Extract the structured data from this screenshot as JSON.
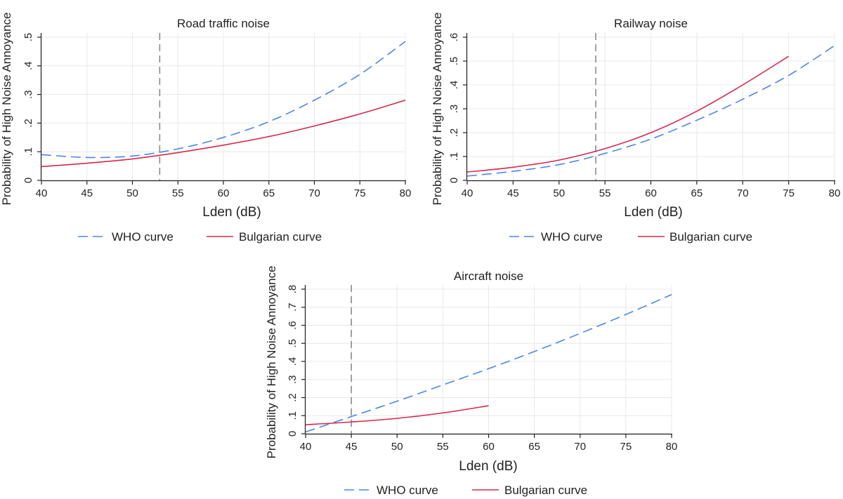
{
  "chart_data": [
    {
      "type": "line",
      "title": "Road traffic noise",
      "xlabel": "Lden (dB)",
      "ylabel": "Probability of High Noise Annoyance",
      "xlim": [
        40,
        80
      ],
      "ylim": [
        0,
        0.5
      ],
      "x_ticks": [
        40,
        45,
        50,
        55,
        60,
        65,
        70,
        75,
        80
      ],
      "y_ticks": [
        0,
        0.1,
        0.2,
        0.3,
        0.4,
        0.5
      ],
      "y_tick_labels": [
        "0",
        ".1",
        ".2",
        ".3",
        ".4",
        ".5"
      ],
      "grid": true,
      "threshold_x": 53,
      "series": [
        {
          "name": "WHO curve",
          "style": "dashed",
          "color": "#4a86e8",
          "x": [
            40,
            45,
            50,
            55,
            60,
            65,
            70,
            75,
            80
          ],
          "y": [
            0.09,
            0.08,
            0.085,
            0.11,
            0.15,
            0.205,
            0.28,
            0.37,
            0.485
          ]
        },
        {
          "name": "Bulgarian curve",
          "style": "solid",
          "color": "#d6284d",
          "x": [
            40,
            45,
            50,
            55,
            60,
            65,
            70,
            75,
            80
          ],
          "y": [
            0.048,
            0.06,
            0.075,
            0.097,
            0.123,
            0.153,
            0.19,
            0.232,
            0.28
          ]
        }
      ]
    },
    {
      "type": "line",
      "title": "Railway noise",
      "xlabel": "Lden (dB)",
      "ylabel": "Probability of High Noise Annoyance",
      "xlim": [
        40,
        80
      ],
      "ylim": [
        0,
        0.6
      ],
      "x_ticks": [
        40,
        45,
        50,
        55,
        60,
        65,
        70,
        75,
        80
      ],
      "y_ticks": [
        0,
        0.1,
        0.2,
        0.3,
        0.4,
        0.5,
        0.6
      ],
      "y_tick_labels": [
        "0",
        ".1",
        ".2",
        ".3",
        ".4",
        ".5",
        ".6"
      ],
      "grid": true,
      "threshold_x": 54,
      "series": [
        {
          "name": "WHO curve",
          "style": "dashed",
          "color": "#4a86e8",
          "x": [
            40,
            45,
            50,
            55,
            60,
            65,
            70,
            75,
            80
          ],
          "y": [
            0.018,
            0.038,
            0.066,
            0.113,
            0.173,
            0.252,
            0.34,
            0.44,
            0.565
          ]
        },
        {
          "name": "Bulgarian curve",
          "style": "solid",
          "color": "#d6284d",
          "x": [
            40,
            45,
            50,
            55,
            60,
            65,
            70,
            75
          ],
          "y": [
            0.035,
            0.055,
            0.085,
            0.133,
            0.2,
            0.29,
            0.4,
            0.52
          ]
        }
      ]
    },
    {
      "type": "line",
      "title": "Aircraft noise",
      "xlabel": "Lden (dB)",
      "ylabel": "Probability of High Noise Annoyance",
      "xlim": [
        40,
        80
      ],
      "ylim": [
        0,
        0.8
      ],
      "x_ticks": [
        40,
        45,
        50,
        55,
        60,
        65,
        70,
        75,
        80
      ],
      "y_ticks": [
        0,
        0.1,
        0.2,
        0.3,
        0.4,
        0.5,
        0.6,
        0.7,
        0.8
      ],
      "y_tick_labels": [
        "0",
        ".1",
        ".2",
        ".3",
        ".4",
        ".5",
        ".6",
        ".7",
        ".8"
      ],
      "grid": true,
      "threshold_x": 45,
      "series": [
        {
          "name": "WHO curve",
          "style": "dashed",
          "color": "#4a86e8",
          "x": [
            40,
            45,
            50,
            55,
            60,
            65,
            70,
            75,
            80
          ],
          "y": [
            0.01,
            0.095,
            0.18,
            0.27,
            0.36,
            0.455,
            0.555,
            0.66,
            0.77
          ]
        },
        {
          "name": "Bulgarian curve",
          "style": "solid",
          "color": "#d6284d",
          "x": [
            40,
            45,
            50,
            55,
            60
          ],
          "y": [
            0.05,
            0.065,
            0.085,
            0.115,
            0.155
          ]
        }
      ]
    }
  ],
  "legend": {
    "who_label": "WHO curve",
    "bulgarian_label": "Bulgarian curve"
  },
  "colors": {
    "who": "#4a86e8",
    "bulgarian": "#d6284d",
    "threshold": "#8a8a8a"
  }
}
